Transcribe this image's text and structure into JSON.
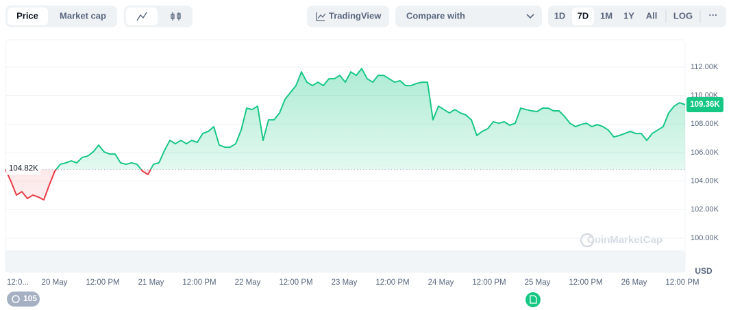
{
  "toolbar": {
    "tabs": [
      "Price",
      "Market cap"
    ],
    "tradingview": "TradingView",
    "compare": "Compare with",
    "ranges": [
      "1D",
      "7D",
      "1M",
      "1Y",
      "All"
    ],
    "log": "LOG",
    "more": "···"
  },
  "watermark": "CoinMarketCap",
  "events_badge": "105",
  "chart_data": {
    "type": "line",
    "currency_label": "USD",
    "baseline": 104.82,
    "baseline_label": "104.82K",
    "last_label": "109.36K",
    "up_color": "#16c784",
    "down_color": "#ea3943",
    "ylim": [
      97.6,
      113.92
    ],
    "yticks": [
      {
        "value": 100,
        "label": "100.00K"
      },
      {
        "value": 102,
        "label": "102.00K"
      },
      {
        "value": 104,
        "label": "104.00K"
      },
      {
        "value": 106,
        "label": "106.00K"
      },
      {
        "value": 108,
        "label": "108.00K"
      },
      {
        "value": 110,
        "label": "110.00K"
      },
      {
        "value": 112,
        "label": "112.00K"
      }
    ],
    "grid": true,
    "xtick_labels": [
      "12:0...",
      "20 May",
      "12:00 PM",
      "21 May",
      "12:00 PM",
      "22 May",
      "12:00 PM",
      "23 May",
      "12:00 PM",
      "24 May",
      "12:00 PM",
      "25 May",
      "12:00 PM",
      "26 May",
      "12:00 PM"
    ],
    "values": [
      104.82,
      103.98,
      103.02,
      103.26,
      102.78,
      103.02,
      102.88,
      102.69,
      103.74,
      104.7,
      105.18,
      105.28,
      105.42,
      105.28,
      105.66,
      105.76,
      106.05,
      106.53,
      106.05,
      105.9,
      105.9,
      105.28,
      105.18,
      105.28,
      105.18,
      104.7,
      104.46,
      105.18,
      105.28,
      106.14,
      106.86,
      106.62,
      106.86,
      106.62,
      106.86,
      106.72,
      107.34,
      107.49,
      107.82,
      106.53,
      106.38,
      106.38,
      106.62,
      107.58,
      109.12,
      109.02,
      109.26,
      106.86,
      108.3,
      108.3,
      108.78,
      109.74,
      110.22,
      110.7,
      111.66,
      110.94,
      110.7,
      110.94,
      110.7,
      111.18,
      111.18,
      111.42,
      110.94,
      111.66,
      111.42,
      111.9,
      111.18,
      110.94,
      111.42,
      111.42,
      111.18,
      110.94,
      111.04,
      110.7,
      110.7,
      110.85,
      110.94,
      110.94,
      108.3,
      109.26,
      109.02,
      108.78,
      109.02,
      108.78,
      108.64,
      108.3,
      107.2,
      107.49,
      107.68,
      108.16,
      108.06,
      108.16,
      107.92,
      108.06,
      109.12,
      109.02,
      108.93,
      108.88,
      109.12,
      109.12,
      108.93,
      108.93,
      108.54,
      108.06,
      107.82,
      107.97,
      108.06,
      107.82,
      107.97,
      107.82,
      107.58,
      107.1,
      107.2,
      107.34,
      107.49,
      107.34,
      107.34,
      106.86,
      107.34,
      107.58,
      107.82,
      108.78,
      109.26,
      109.5,
      109.36
    ]
  }
}
